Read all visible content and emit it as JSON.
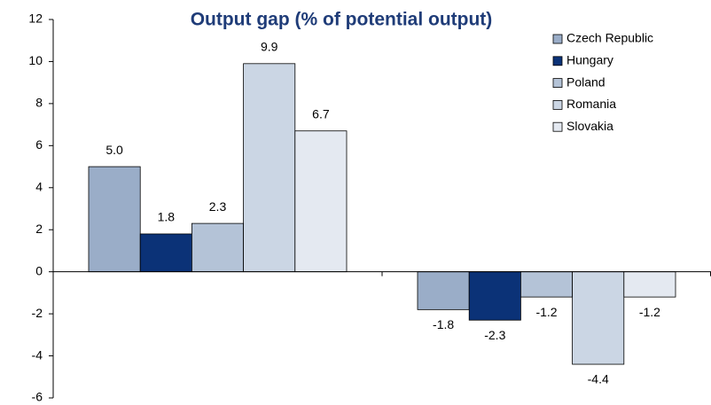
{
  "chart_data": {
    "type": "bar",
    "title": "Output gap (% of potential output)",
    "categories": [
      null,
      null
    ],
    "series": [
      {
        "name": "Czech Republic",
        "color": "#9aadc8",
        "values": [
          5.0,
          -1.8
        ],
        "value_labels": [
          "5.0",
          "-1.8"
        ]
      },
      {
        "name": "Hungary",
        "color": "#0b3277",
        "values": [
          1.8,
          -2.3
        ]
      },
      {
        "name": "Poland",
        "color": "#b4c3d7",
        "values": [
          2.3,
          -1.2
        ]
      },
      {
        "name": "Romania",
        "color": "#cbd6e4",
        "values": [
          9.9,
          -4.4
        ]
      },
      {
        "name": "Slovakia",
        "color": "#e4e9f1",
        "values": [
          6.7,
          -1.2
        ]
      }
    ],
    "ylim": [
      -6,
      12
    ],
    "yticks": [
      -6,
      -4,
      -2,
      0,
      2,
      4,
      6,
      8,
      10,
      12
    ],
    "grid": false,
    "legend": "top-right"
  }
}
